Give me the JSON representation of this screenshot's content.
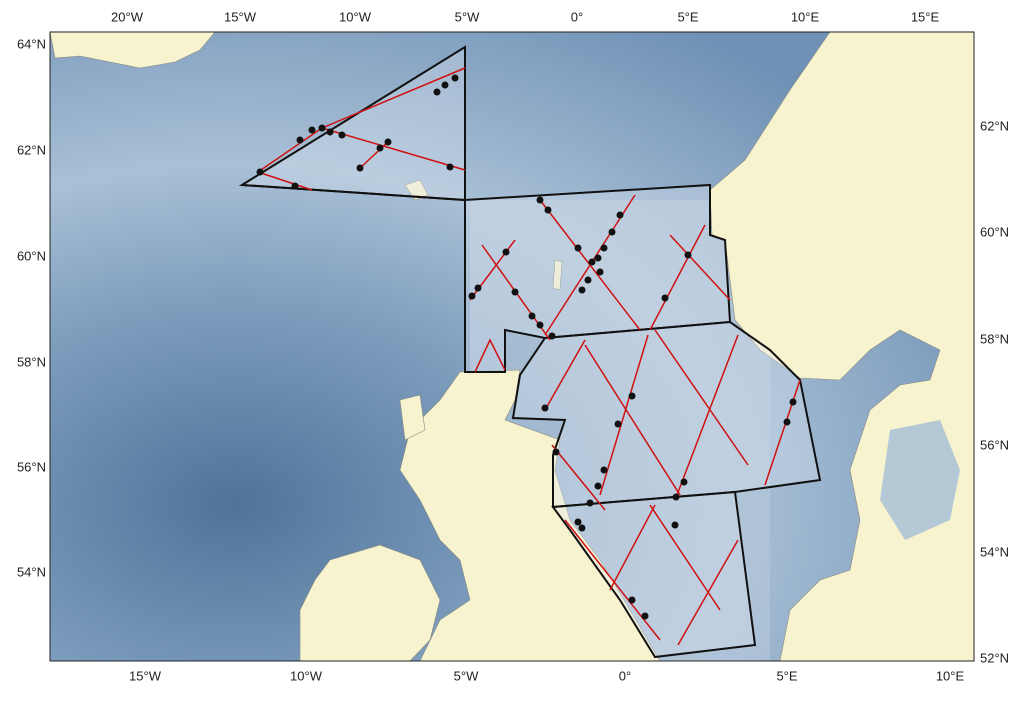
{
  "axes": {
    "top": [
      "20°W",
      "15°W",
      "10°W",
      "5°W",
      "0°",
      "5°E",
      "10°E",
      "15°E"
    ],
    "bottom": [
      "15°W",
      "10°W",
      "5°W",
      "0°",
      "5°E",
      "10°E"
    ],
    "left": [
      "64°N",
      "62°N",
      "60°N",
      "58°N",
      "56°N",
      "54°N"
    ],
    "right": [
      "62°N",
      "60°N",
      "58°N",
      "56°N",
      "54°N",
      "52°N"
    ]
  }
}
